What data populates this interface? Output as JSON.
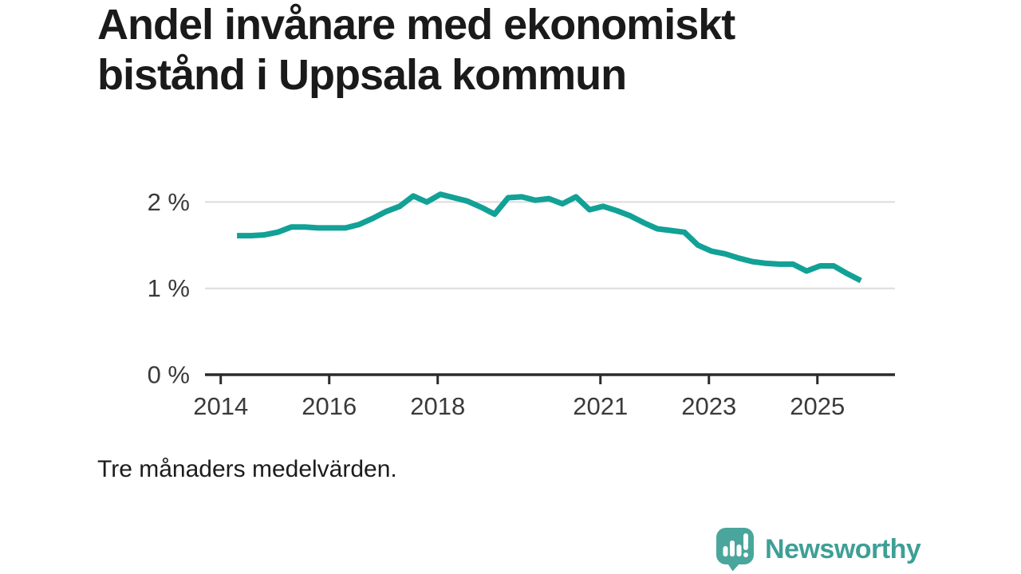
{
  "title": "Andel invånare med ekonomiskt bistånd i Uppsala kommun",
  "caption": "Tre månaders medelvärden.",
  "branding": {
    "name": "Newsworthy",
    "icon": "speech-bubble-bar-chart-exclamation-icon",
    "icon_color": "#4aa69c",
    "text_color": "#3f9f96"
  },
  "chart_data": {
    "type": "line",
    "title": "Andel invånare med ekonomiskt bistånd i Uppsala kommun",
    "subtitle": "Tre månaders medelvärden.",
    "xlabel": "",
    "ylabel": "",
    "unit": "%",
    "grid": "horizontal",
    "legend": "none",
    "xlim": [
      2013.71,
      2026.43
    ],
    "ylim": [
      0,
      2.41
    ],
    "x_ticks": [
      {
        "value": 2014,
        "label": "2014"
      },
      {
        "value": 2016,
        "label": "2016"
      },
      {
        "value": 2018,
        "label": "2018"
      },
      {
        "value": 2021,
        "label": "2021"
      },
      {
        "value": 2023,
        "label": "2023"
      },
      {
        "value": 2025,
        "label": "2025"
      }
    ],
    "y_ticks": [
      {
        "value": 0,
        "label": "0 %"
      },
      {
        "value": 1,
        "label": "1 %"
      },
      {
        "value": 2,
        "label": "2 %"
      }
    ],
    "series": [
      {
        "name": "Andel invånare med ekonomiskt bistånd",
        "x": [
          2014.3,
          2014.55,
          2014.8,
          2015.05,
          2015.3,
          2015.55,
          2015.8,
          2016.05,
          2016.3,
          2016.55,
          2016.8,
          2017.05,
          2017.3,
          2017.55,
          2017.8,
          2018.05,
          2018.3,
          2018.55,
          2018.8,
          2019.05,
          2019.3,
          2019.55,
          2019.8,
          2020.05,
          2020.3,
          2020.55,
          2020.8,
          2021.05,
          2021.3,
          2021.55,
          2021.8,
          2022.05,
          2022.3,
          2022.55,
          2022.8,
          2023.05,
          2023.3,
          2023.55,
          2023.8,
          2024.05,
          2024.3,
          2024.55,
          2024.8,
          2025.05,
          2025.3,
          2025.55,
          2025.8
        ],
        "values": [
          1.61,
          1.61,
          1.62,
          1.65,
          1.71,
          1.71,
          1.7,
          1.7,
          1.7,
          1.74,
          1.81,
          1.89,
          1.95,
          2.07,
          2.0,
          2.09,
          2.05,
          2.01,
          1.94,
          1.86,
          2.05,
          2.06,
          2.02,
          2.04,
          1.98,
          2.06,
          1.91,
          1.95,
          1.9,
          1.84,
          1.76,
          1.69,
          1.67,
          1.65,
          1.5,
          1.43,
          1.4,
          1.35,
          1.31,
          1.29,
          1.28,
          1.28,
          1.2,
          1.26,
          1.26,
          1.17,
          1.09
        ]
      }
    ],
    "colors": {
      "line": "#12a196",
      "grid": "#dcdcdc",
      "axis": "#2b2b2b",
      "tick_text": "#3a3a3a"
    }
  }
}
